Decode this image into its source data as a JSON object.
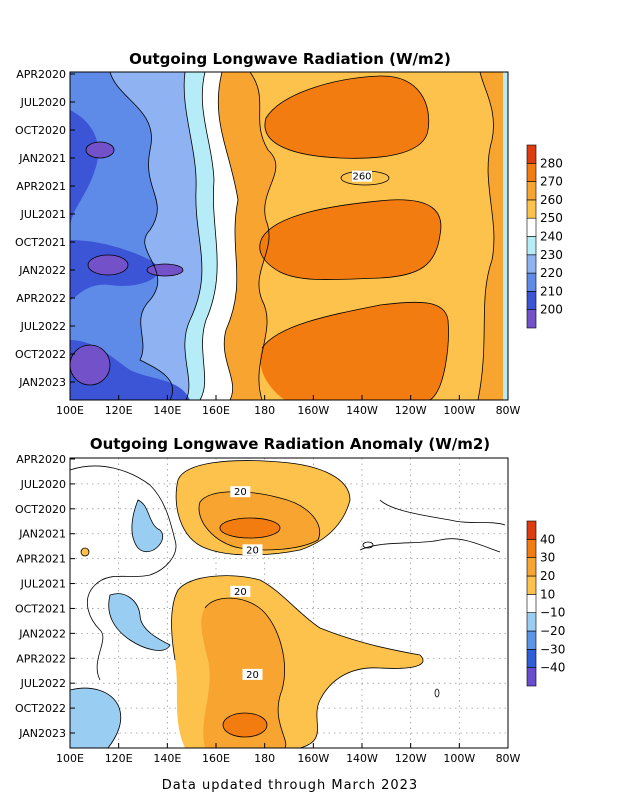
{
  "footer": "Data updated through March 2023",
  "chart_data": [
    {
      "type": "heatmap",
      "title": "Outgoing Longwave Radiation (W/m2)",
      "x_ticks": [
        "100E",
        "120E",
        "140E",
        "160E",
        "180",
        "160W",
        "140W",
        "120W",
        "100W",
        "80W"
      ],
      "y_ticks": [
        "APR2020",
        "JUL2020",
        "OCT2020",
        "JAN2021",
        "APR2021",
        "JUL2021",
        "OCT2021",
        "JAN2022",
        "APR2022",
        "JUL2022",
        "OCT2022",
        "JAN2023"
      ],
      "colorbar": {
        "levels": [
          200,
          210,
          220,
          230,
          240,
          250,
          260,
          270,
          280
        ],
        "colors": [
          "#7351c9",
          "#3b55d6",
          "#5f8be8",
          "#8fb3f2",
          "#b5ecf7",
          "#ffffff",
          "#fcc24c",
          "#f8a431",
          "#f37c11",
          "#de3c0e"
        ]
      },
      "contour_labels": [
        {
          "text": "260",
          "x": "140W",
          "y": "MAR2021"
        }
      ],
      "grid": false
    },
    {
      "type": "heatmap",
      "title": "Outgoing Longwave Radiation Anomaly (W/m2)",
      "x_ticks": [
        "100E",
        "120E",
        "140E",
        "160E",
        "180",
        "160W",
        "140W",
        "120W",
        "100W",
        "80W"
      ],
      "y_ticks": [
        "APR2020",
        "JUL2020",
        "OCT2020",
        "JAN2021",
        "APR2021",
        "JUL2021",
        "OCT2021",
        "JAN2022",
        "APR2022",
        "JUL2022",
        "OCT2022",
        "JAN2023"
      ],
      "colorbar": {
        "levels": [
          -40,
          -30,
          -20,
          -10,
          10,
          20,
          30,
          40
        ],
        "colors": [
          "#6a4ccf",
          "#2f5fd8",
          "#5a95e8",
          "#9acdf2",
          "#ffffff",
          "#fcc24c",
          "#f8a431",
          "#f37c11",
          "#de3c0e"
        ]
      },
      "contour_labels": [
        {
          "text": "20",
          "x": "170E",
          "y": "AUG2020"
        },
        {
          "text": "20",
          "x": "175E",
          "y": "MAR2021"
        },
        {
          "text": "20",
          "x": "170E",
          "y": "AUG2021"
        },
        {
          "text": "20",
          "x": "175E",
          "y": "JUN2022"
        }
      ],
      "grid": true
    }
  ]
}
